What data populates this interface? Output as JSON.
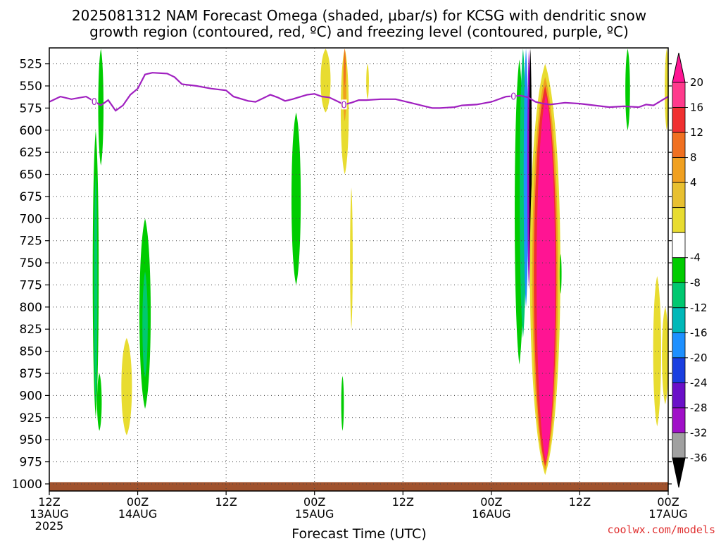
{
  "chart_data": {
    "type": "heatmap",
    "title_line1": "2025081312 NAM Forecast Omega (shaded, μbar/s) for KCSG with dendritic snow",
    "title_line2": "growth region (contoured, red, ºC) and freezing level (contoured, purple, ºC)",
    "xlabel": "Forecast Time (UTC)",
    "credit": "coolwx.com/models",
    "y_axis": {
      "unit": "hPa",
      "ticks": [
        525,
        550,
        575,
        600,
        625,
        650,
        675,
        700,
        725,
        750,
        775,
        800,
        825,
        850,
        875,
        900,
        925,
        950,
        975,
        1000
      ],
      "range": [
        507,
        1008
      ]
    },
    "x_axis": {
      "range_hours": [
        0,
        84
      ],
      "ticks": [
        {
          "hour": 0,
          "l1": "12Z",
          "l2": "13AUG",
          "l3": "2025"
        },
        {
          "hour": 12,
          "l1": "00Z",
          "l2": "14AUG",
          "l3": ""
        },
        {
          "hour": 24,
          "l1": "12Z",
          "l2": "",
          "l3": ""
        },
        {
          "hour": 36,
          "l1": "00Z",
          "l2": "15AUG",
          "l3": ""
        },
        {
          "hour": 48,
          "l1": "12Z",
          "l2": "",
          "l3": ""
        },
        {
          "hour": 60,
          "l1": "00Z",
          "l2": "16AUG",
          "l3": ""
        },
        {
          "hour": 72,
          "l1": "12Z",
          "l2": "",
          "l3": ""
        },
        {
          "hour": 84,
          "l1": "00Z",
          "l2": "17AUG",
          "l3": ""
        }
      ]
    },
    "colorbar": {
      "labels": [
        "20",
        "16",
        "12",
        "8",
        "4",
        "-4",
        "-8",
        "-12",
        "-16",
        "-20",
        "-24",
        "-28",
        "-32",
        "-36"
      ],
      "colors": [
        "#ff3a8c",
        "#f03030",
        "#f07020",
        "#f0a020",
        "#e8c030",
        "#e8dc30",
        "#ffffff",
        "#00cc00",
        "#00c870",
        "#00b8b8",
        "#1e90ff",
        "#1a3fe0",
        "#6a10c8",
        "#a010c8",
        "#a0a0a0"
      ],
      "top_triangle_color": "#ff1493",
      "bottom_triangle_color": "#000000"
    },
    "omega_regions": [
      {
        "hour": 6.8,
        "p_top": 875,
        "p_bot": 940,
        "width_h": 0.7,
        "color": "#00cc00"
      },
      {
        "hour": 6.3,
        "p_top": 600,
        "p_bot": 925,
        "width_h": 0.9,
        "color": "#00cc00"
      },
      {
        "hour": 6.3,
        "p_top": 650,
        "p_bot": 910,
        "width_h": 0.5,
        "color": "#00c870"
      },
      {
        "hour": 7.0,
        "p_top": 508,
        "p_bot": 640,
        "width_h": 0.8,
        "color": "#00cc00"
      },
      {
        "hour": 10.5,
        "p_top": 835,
        "p_bot": 945,
        "width_h": 1.6,
        "color": "#e8dc30"
      },
      {
        "hour": 13.0,
        "p_top": 700,
        "p_bot": 915,
        "width_h": 1.7,
        "color": "#00cc00"
      },
      {
        "hour": 13.0,
        "p_top": 760,
        "p_bot": 880,
        "width_h": 0.8,
        "color": "#00c870"
      },
      {
        "hour": 33.5,
        "p_top": 580,
        "p_bot": 775,
        "width_h": 1.4,
        "color": "#00cc00"
      },
      {
        "hour": 37.5,
        "p_top": 508,
        "p_bot": 580,
        "width_h": 1.5,
        "color": "#e8dc30"
      },
      {
        "hour": 40.1,
        "p_top": 508,
        "p_bot": 650,
        "width_h": 1.2,
        "color": "#e8dc30"
      },
      {
        "hour": 40.1,
        "p_top": 508,
        "p_bot": 590,
        "width_h": 0.5,
        "color": "#f0a020"
      },
      {
        "hour": 40.1,
        "p_top": 508,
        "p_bot": 550,
        "width_h": 0.25,
        "color": "#f07020"
      },
      {
        "hour": 41.0,
        "p_top": 665,
        "p_bot": 825,
        "width_h": 0.4,
        "color": "#e8dc30"
      },
      {
        "hour": 43.2,
        "p_top": 525,
        "p_bot": 565,
        "width_h": 0.4,
        "color": "#e8dc30"
      },
      {
        "hour": 39.8,
        "p_top": 878,
        "p_bot": 940,
        "width_h": 0.4,
        "color": "#00cc00"
      },
      {
        "hour": 63.8,
        "p_top": 520,
        "p_bot": 865,
        "width_h": 1.4,
        "color": "#00cc00"
      },
      {
        "hour": 64.3,
        "p_top": 508,
        "p_bot": 835,
        "width_h": 1.0,
        "color": "#00c870"
      },
      {
        "hour": 64.7,
        "p_top": 508,
        "p_bot": 800,
        "width_h": 0.7,
        "color": "#1e90ff"
      },
      {
        "hour": 65.1,
        "p_top": 508,
        "p_bot": 780,
        "width_h": 0.5,
        "color": "#a010c8"
      },
      {
        "hour": 65.3,
        "p_top": 508,
        "p_bot": 760,
        "width_h": 0.4,
        "color": "#000000"
      },
      {
        "hour": 67.3,
        "p_top": 525,
        "p_bot": 990,
        "width_h": 4.6,
        "color": "#e8dc30"
      },
      {
        "hour": 67.3,
        "p_top": 540,
        "p_bot": 985,
        "width_h": 3.9,
        "color": "#f0a020"
      },
      {
        "hour": 67.3,
        "p_top": 550,
        "p_bot": 980,
        "width_h": 3.4,
        "color": "#f03030"
      },
      {
        "hour": 67.4,
        "p_top": 560,
        "p_bot": 975,
        "width_h": 2.8,
        "color": "#ff1493"
      },
      {
        "hour": 69.4,
        "p_top": 740,
        "p_bot": 785,
        "width_h": 0.25,
        "color": "#00cc00"
      },
      {
        "hour": 78.5,
        "p_top": 508,
        "p_bot": 600,
        "width_h": 0.7,
        "color": "#00cc00"
      },
      {
        "hour": 82.5,
        "p_top": 765,
        "p_bot": 935,
        "width_h": 1.2,
        "color": "#e8dc30"
      },
      {
        "hour": 83.8,
        "p_top": 508,
        "p_bot": 600,
        "width_h": 0.6,
        "color": "#e8dc30"
      },
      {
        "hour": 83.6,
        "p_top": 800,
        "p_bot": 910,
        "width_h": 1.0,
        "color": "#e8dc30"
      }
    ],
    "freezing_level": {
      "label": "0",
      "color": "#a020c0",
      "points": [
        [
          0,
          568
        ],
        [
          1.5,
          562
        ],
        [
          3,
          565
        ],
        [
          5,
          562
        ],
        [
          6,
          567
        ],
        [
          7,
          572
        ],
        [
          8,
          566
        ],
        [
          9,
          578
        ],
        [
          10,
          572
        ],
        [
          11,
          560
        ],
        [
          12,
          553
        ],
        [
          12.5,
          545
        ],
        [
          13,
          537
        ],
        [
          14,
          535
        ],
        [
          16,
          536
        ],
        [
          17,
          540
        ],
        [
          18,
          548
        ],
        [
          20,
          550
        ],
        [
          22,
          553
        ],
        [
          24,
          555
        ],
        [
          25,
          562
        ],
        [
          27,
          567
        ],
        [
          28,
          568
        ],
        [
          30,
          560
        ],
        [
          31,
          563
        ],
        [
          32,
          567
        ],
        [
          33,
          565
        ],
        [
          35,
          560
        ],
        [
          36,
          559
        ],
        [
          37,
          562
        ],
        [
          38,
          563
        ],
        [
          39,
          567
        ],
        [
          40,
          571
        ],
        [
          41,
          569
        ],
        [
          42,
          566
        ],
        [
          43,
          566
        ],
        [
          45,
          565
        ],
        [
          47,
          565
        ],
        [
          49,
          569
        ],
        [
          51,
          573
        ],
        [
          52,
          575
        ],
        [
          53,
          575
        ],
        [
          55,
          574
        ],
        [
          56,
          572
        ],
        [
          58,
          571
        ],
        [
          60,
          568
        ],
        [
          62,
          562
        ],
        [
          64,
          561
        ],
        [
          65,
          563
        ],
        [
          66,
          568
        ],
        [
          67,
          570
        ],
        [
          68,
          571
        ],
        [
          70,
          569
        ],
        [
          72,
          570
        ],
        [
          74,
          572
        ],
        [
          76,
          574
        ],
        [
          78,
          573
        ],
        [
          80,
          574
        ],
        [
          81,
          571
        ],
        [
          82,
          572
        ],
        [
          83,
          567
        ],
        [
          84,
          562
        ]
      ],
      "markers": [
        6.1,
        40.0,
        63.0
      ]
    },
    "ground_layer": {
      "p_top": 998,
      "color": "#a0522d"
    }
  }
}
